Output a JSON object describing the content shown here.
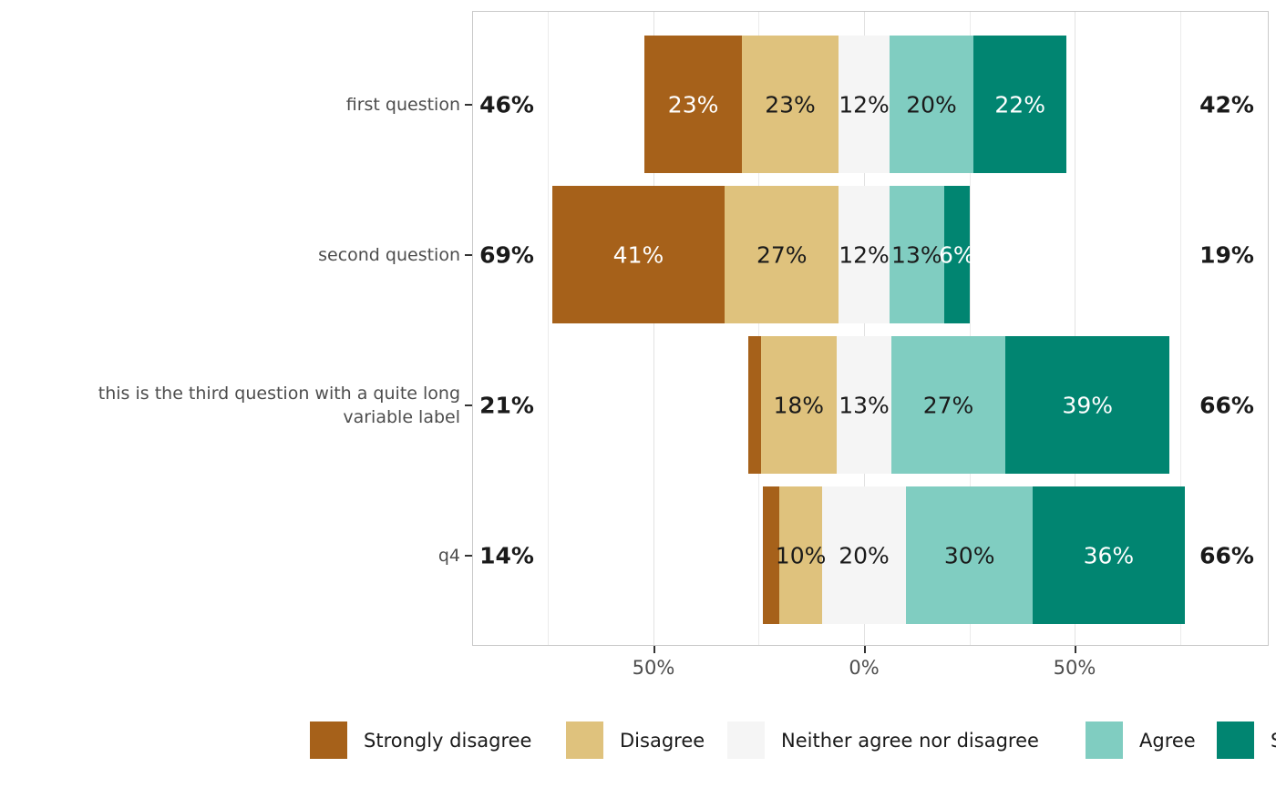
{
  "chart_data": {
    "type": "bar",
    "subtype": "diverging-stacked-likert",
    "orientation": "horizontal",
    "title": "",
    "xlabel": "",
    "ylabel": "",
    "categories": [
      "first question",
      "second question",
      "this is the third question with a quite long variable label",
      "q4"
    ],
    "series": [
      {
        "name": "Strongly disagree",
        "color": "#a6611a",
        "label_color": "#ffffff",
        "values": [
          23,
          41,
          3,
          4
        ]
      },
      {
        "name": "Disagree",
        "color": "#dfc27d",
        "label_color": "#1a1a1a",
        "values": [
          23,
          27,
          18,
          10
        ]
      },
      {
        "name": "Neither agree nor disagree",
        "color": "#f5f5f5",
        "label_color": "#1a1a1a",
        "values": [
          12,
          12,
          13,
          20
        ]
      },
      {
        "name": "Agree",
        "color": "#80cdc1",
        "label_color": "#1a1a1a",
        "values": [
          20,
          13,
          27,
          30
        ]
      },
      {
        "name": "Strongly agree",
        "color": "#018571",
        "label_color": "#ffffff",
        "values": [
          22,
          6,
          39,
          36
        ]
      }
    ],
    "totals_left": [
      "46%",
      "69%",
      "21%",
      "14%"
    ],
    "totals_right": [
      "42%",
      "19%",
      "66%",
      "66%"
    ],
    "min_label_pct": 5,
    "x_axis": {
      "ticks": [
        {
          "label": "50%",
          "value": -50
        },
        {
          "label": "0%",
          "value": 0
        },
        {
          "label": "50%",
          "value": 50
        }
      ],
      "minor_gridlines": [
        -75,
        -25,
        25,
        75
      ],
      "range_pct": [
        -93,
        94.5
      ],
      "grid": true
    },
    "legend": {
      "position": "bottom",
      "items": [
        {
          "label": "Strongly disagree",
          "color": "#a6611a"
        },
        {
          "label": "Disagree",
          "color": "#dfc27d"
        },
        {
          "label": "Neither agree nor disagree",
          "color": "#f5f5f5"
        },
        {
          "label": "Agree",
          "color": "#80cdc1"
        },
        {
          "label": "Strongly agree",
          "color": "#018571"
        }
      ]
    },
    "style": {
      "panel_border_color": "#c9c9c9",
      "major_grid_color": "#e2e2e2",
      "minor_grid_color": "#ebebeb",
      "axis_text_color": "#4d4d4d",
      "category_text_color": "#4d4d4d",
      "total_text_color": "#1a1a1a",
      "background": "#ffffff"
    }
  }
}
